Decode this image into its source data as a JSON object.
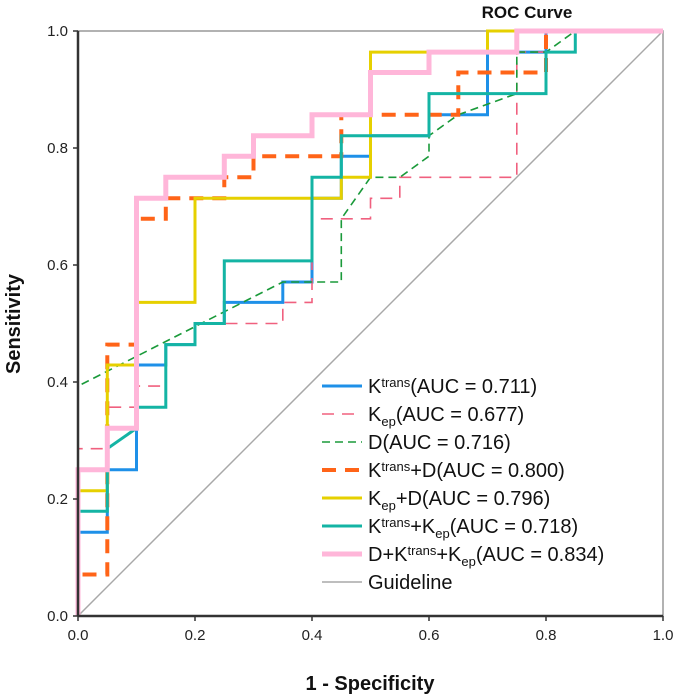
{
  "chart_data": {
    "type": "line",
    "title": "ROC Curve",
    "xlabel": "1 - Specificity",
    "ylabel": "Sensitivity",
    "xlim": [
      0,
      1
    ],
    "ylim": [
      0,
      1
    ],
    "xticks": [
      "0.0",
      "0.2",
      "0.4",
      "0.6",
      "0.8",
      "1.0"
    ],
    "yticks": [
      "0.0",
      "0.2",
      "0.4",
      "0.6",
      "0.8",
      "1.0"
    ],
    "legend_position": "bottom-right",
    "series": [
      {
        "name": "Ktrans(AUC = 0.711)",
        "label": [
          {
            "t": "K"
          },
          {
            "sup": "trans"
          },
          {
            "t": "(AUC = 0.711)"
          }
        ],
        "color": "#1e90e8",
        "dash": "solid",
        "width": 3,
        "points": [
          [
            0,
            0
          ],
          [
            0,
            0.143
          ],
          [
            0.05,
            0.143
          ],
          [
            0.05,
            0.25
          ],
          [
            0.1,
            0.25
          ],
          [
            0.1,
            0.429
          ],
          [
            0.15,
            0.429
          ],
          [
            0.15,
            0.464
          ],
          [
            0.2,
            0.464
          ],
          [
            0.2,
            0.5
          ],
          [
            0.25,
            0.5
          ],
          [
            0.25,
            0.536
          ],
          [
            0.35,
            0.536
          ],
          [
            0.35,
            0.571
          ],
          [
            0.4,
            0.571
          ],
          [
            0.4,
            0.714
          ],
          [
            0.45,
            0.714
          ],
          [
            0.45,
            0.786
          ],
          [
            0.5,
            0.786
          ],
          [
            0.5,
            0.821
          ],
          [
            0.6,
            0.821
          ],
          [
            0.6,
            0.857
          ],
          [
            0.7,
            0.857
          ],
          [
            0.7,
            0.964
          ],
          [
            0.8,
            0.964
          ],
          [
            0.8,
            1
          ],
          [
            1,
            1
          ]
        ]
      },
      {
        "name": "Kep(AUC = 0.677)",
        "label": [
          {
            "t": "K"
          },
          {
            "sub": "ep"
          },
          {
            "t": "(AUC = 0.677)"
          }
        ],
        "color": "#f0607f",
        "dash": "12 8",
        "width": 1.6,
        "points": [
          [
            0,
            0
          ],
          [
            0,
            0.286
          ],
          [
            0.05,
            0.286
          ],
          [
            0.05,
            0.357
          ],
          [
            0.1,
            0.357
          ],
          [
            0.1,
            0.393
          ],
          [
            0.15,
            0.393
          ],
          [
            0.15,
            0.464
          ],
          [
            0.2,
            0.464
          ],
          [
            0.2,
            0.5
          ],
          [
            0.35,
            0.5
          ],
          [
            0.35,
            0.536
          ],
          [
            0.4,
            0.536
          ],
          [
            0.4,
            0.679
          ],
          [
            0.5,
            0.679
          ],
          [
            0.5,
            0.714
          ],
          [
            0.55,
            0.714
          ],
          [
            0.55,
            0.75
          ],
          [
            0.75,
            0.75
          ],
          [
            0.75,
            0.964
          ],
          [
            0.8,
            0.964
          ],
          [
            0.8,
            1
          ],
          [
            1,
            1
          ]
        ]
      },
      {
        "name": "D(AUC = 0.716)",
        "label": [
          {
            "t": "D(AUC = 0.716)"
          }
        ],
        "color": "#1a9a3a",
        "dash": "8 5",
        "width": 1.6,
        "points": [
          [
            0,
            0
          ],
          [
            0,
            0.393
          ],
          [
            0.35,
            0.571
          ],
          [
            0.45,
            0.571
          ],
          [
            0.45,
            0.679
          ],
          [
            0.5,
            0.75
          ],
          [
            0.55,
            0.75
          ],
          [
            0.6,
            0.786
          ],
          [
            0.6,
            0.821
          ],
          [
            0.65,
            0.857
          ],
          [
            0.75,
            0.893
          ],
          [
            0.75,
            0.964
          ],
          [
            0.8,
            0.964
          ],
          [
            0.85,
            1
          ],
          [
            1,
            1
          ]
        ]
      },
      {
        "name": "Ktrans+D(AUC = 0.800)",
        "label": [
          {
            "t": "K"
          },
          {
            "sup": "trans"
          },
          {
            "t": "+D(AUC = 0.800)"
          }
        ],
        "color": "#ff6418",
        "dash": "14 9",
        "width": 4,
        "points": [
          [
            0,
            0
          ],
          [
            0,
            0.071
          ],
          [
            0.05,
            0.071
          ],
          [
            0.05,
            0.464
          ],
          [
            0.1,
            0.464
          ],
          [
            0.1,
            0.679
          ],
          [
            0.15,
            0.679
          ],
          [
            0.15,
            0.714
          ],
          [
            0.25,
            0.714
          ],
          [
            0.25,
            0.75
          ],
          [
            0.3,
            0.75
          ],
          [
            0.3,
            0.786
          ],
          [
            0.45,
            0.786
          ],
          [
            0.45,
            0.857
          ],
          [
            0.65,
            0.857
          ],
          [
            0.65,
            0.929
          ],
          [
            0.8,
            0.929
          ],
          [
            0.8,
            1
          ],
          [
            1,
            1
          ]
        ]
      },
      {
        "name": "Kep+D(AUC = 0.796)",
        "label": [
          {
            "t": "K"
          },
          {
            "sub": "ep"
          },
          {
            "t": "+D(AUC = 0.796)"
          }
        ],
        "color": "#e6d000",
        "dash": "solid",
        "width": 3,
        "points": [
          [
            0,
            0
          ],
          [
            0,
            0.214
          ],
          [
            0.05,
            0.214
          ],
          [
            0.05,
            0.429
          ],
          [
            0.1,
            0.429
          ],
          [
            0.1,
            0.536
          ],
          [
            0.2,
            0.536
          ],
          [
            0.2,
            0.714
          ],
          [
            0.45,
            0.714
          ],
          [
            0.45,
            0.75
          ],
          [
            0.5,
            0.75
          ],
          [
            0.5,
            0.964
          ],
          [
            0.7,
            0.964
          ],
          [
            0.7,
            1
          ],
          [
            1,
            1
          ]
        ]
      },
      {
        "name": "Ktrans+Kep(AUC = 0.718)",
        "label": [
          {
            "t": "K"
          },
          {
            "sup": "trans"
          },
          {
            "t": "+K"
          },
          {
            "sub": "ep"
          },
          {
            "t": "(AUC = 0.718)"
          }
        ],
        "color": "#14b4a4",
        "dash": "solid",
        "width": 3,
        "points": [
          [
            0,
            0
          ],
          [
            0,
            0.179
          ],
          [
            0.05,
            0.179
          ],
          [
            0.05,
            0.286
          ],
          [
            0.1,
            0.321
          ],
          [
            0.1,
            0.357
          ],
          [
            0.15,
            0.357
          ],
          [
            0.15,
            0.464
          ],
          [
            0.2,
            0.464
          ],
          [
            0.2,
            0.5
          ],
          [
            0.25,
            0.5
          ],
          [
            0.25,
            0.607
          ],
          [
            0.4,
            0.607
          ],
          [
            0.4,
            0.75
          ],
          [
            0.45,
            0.75
          ],
          [
            0.45,
            0.821
          ],
          [
            0.6,
            0.821
          ],
          [
            0.6,
            0.893
          ],
          [
            0.8,
            0.893
          ],
          [
            0.8,
            0.964
          ],
          [
            0.85,
            0.964
          ],
          [
            0.85,
            1
          ],
          [
            1,
            1
          ]
        ]
      },
      {
        "name": "D+Ktrans+Kep(AUC = 0.834)",
        "label": [
          {
            "t": "D+K"
          },
          {
            "sup": "trans"
          },
          {
            "t": "+K"
          },
          {
            "sub": "ep"
          },
          {
            "t": "(AUC = 0.834)"
          }
        ],
        "color": "#ffb6d9",
        "dash": "solid",
        "width": 5,
        "points": [
          [
            0,
            0
          ],
          [
            0,
            0.25
          ],
          [
            0.05,
            0.25
          ],
          [
            0.05,
            0.321
          ],
          [
            0.1,
            0.321
          ],
          [
            0.1,
            0.714
          ],
          [
            0.15,
            0.714
          ],
          [
            0.15,
            0.75
          ],
          [
            0.25,
            0.75
          ],
          [
            0.25,
            0.786
          ],
          [
            0.3,
            0.786
          ],
          [
            0.3,
            0.821
          ],
          [
            0.4,
            0.821
          ],
          [
            0.4,
            0.857
          ],
          [
            0.5,
            0.857
          ],
          [
            0.5,
            0.929
          ],
          [
            0.6,
            0.929
          ],
          [
            0.6,
            0.964
          ],
          [
            0.75,
            0.964
          ],
          [
            0.75,
            1
          ],
          [
            1,
            1
          ]
        ]
      },
      {
        "name": "Guideline",
        "label": [
          {
            "t": "Guideline"
          }
        ],
        "color": "#a8a8a8",
        "dash": "solid",
        "width": 1.5,
        "points": [
          [
            0,
            0
          ],
          [
            1,
            1
          ]
        ]
      }
    ]
  }
}
